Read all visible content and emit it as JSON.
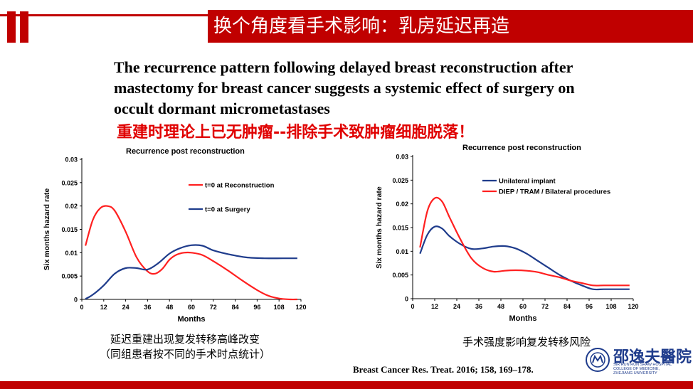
{
  "header": {
    "title": "换个角度看手术影响：乳房延迟再造"
  },
  "body_text": {
    "english": "The recurrence pattern following delayed breast reconstruction after mastectomy for breast cancer suggests a systemic effect of surgery on occult dormant micrometastases",
    "chinese_highlight": "重建时理论上已无肿瘤--排除手术致肿瘤细胞脱落！"
  },
  "captions": {
    "left_line1": "延迟重建出现复发转移高峰改变",
    "left_line2": "（同组患者按不同的手术时点统计）",
    "right": "手术强度影响复发转移风险"
  },
  "reference": "Breast Cancer Res. Treat. 2016; 158, 169–178.",
  "logo": {
    "name_cn": "邵逸夫醫院",
    "name_en_lines": [
      "SIR RUN RUN SHAW HOSPITAL",
      "COLLEGE OF MEDICINE,",
      "ZHEJIANG UNIVERSITY"
    ]
  },
  "colors": {
    "accent_red": "#c00000",
    "series_red": "#ff2020",
    "series_blue": "#1f3c8c"
  },
  "chart_data": [
    {
      "type": "line",
      "title": "Recurrence post reconstruction",
      "xlabel": "Months",
      "ylabel": "Six months hazard rate",
      "xlim": [
        0,
        120
      ],
      "ylim": [
        0,
        0.03
      ],
      "x_ticks": [
        "0",
        "12",
        "24",
        "36",
        "48",
        "60",
        "72",
        "84",
        "96",
        "108",
        "120"
      ],
      "y_ticks": [
        "0",
        "0.005",
        "0.01",
        "0.015",
        "0.02",
        "0.025",
        "0.03"
      ],
      "legend_position": "top-right",
      "series": [
        {
          "name": "t=0 at Reconstruction",
          "color": "red",
          "x": [
            2,
            6,
            10,
            14,
            18,
            24,
            30,
            36,
            40,
            44,
            48,
            52,
            56,
            60,
            66,
            72,
            80,
            88,
            96,
            102,
            108,
            114,
            118
          ],
          "y": [
            0.0115,
            0.017,
            0.0195,
            0.02,
            0.019,
            0.0145,
            0.009,
            0.006,
            0.0055,
            0.0065,
            0.0085,
            0.0096,
            0.01,
            0.01,
            0.0095,
            0.0082,
            0.0062,
            0.004,
            0.002,
            0.0008,
            0.0002,
            0.0,
            0.0
          ]
        },
        {
          "name": "t=0 at Surgery",
          "color": "blue",
          "x": [
            2,
            6,
            12,
            18,
            24,
            30,
            36,
            42,
            48,
            54,
            60,
            66,
            72,
            80,
            90,
            100,
            110,
            118
          ],
          "y": [
            0.0001,
            0.001,
            0.003,
            0.0055,
            0.0067,
            0.0067,
            0.0064,
            0.0078,
            0.0098,
            0.011,
            0.0116,
            0.0115,
            0.0105,
            0.0097,
            0.009,
            0.0088,
            0.0088,
            0.0088
          ]
        }
      ]
    },
    {
      "type": "line",
      "title": "Recurrence post reconstruction",
      "xlabel": "Months",
      "ylabel": "Six months hazard rate",
      "xlim": [
        0,
        120
      ],
      "ylim": [
        0,
        0.03
      ],
      "x_ticks": [
        "0",
        "12",
        "24",
        "36",
        "48",
        "60",
        "72",
        "84",
        "96",
        "108",
        "120"
      ],
      "y_ticks": [
        "0",
        "0.005",
        "0.01",
        "0.015",
        "0.02",
        "0.025",
        "0.03"
      ],
      "legend_position": "top-right",
      "series": [
        {
          "name": "Unilateral implant",
          "color": "blue",
          "x": [
            4,
            8,
            12,
            16,
            20,
            26,
            32,
            38,
            44,
            50,
            56,
            62,
            68,
            74,
            80,
            86,
            92,
            98,
            104,
            110,
            118
          ],
          "y": [
            0.0095,
            0.0135,
            0.0152,
            0.0148,
            0.0132,
            0.0115,
            0.0105,
            0.0106,
            0.011,
            0.0111,
            0.0106,
            0.0095,
            0.008,
            0.0065,
            0.005,
            0.0038,
            0.0028,
            0.002,
            0.002,
            0.002,
            0.002
          ]
        },
        {
          "name": "DIEP / TRAM / Bilateral procedures",
          "color": "red",
          "x": [
            4,
            8,
            12,
            16,
            20,
            26,
            32,
            38,
            44,
            50,
            56,
            62,
            68,
            74,
            80,
            86,
            92,
            98,
            104,
            110,
            118
          ],
          "y": [
            0.0108,
            0.0185,
            0.0212,
            0.0205,
            0.0172,
            0.0125,
            0.0085,
            0.0065,
            0.0057,
            0.0059,
            0.006,
            0.0059,
            0.0056,
            0.005,
            0.0045,
            0.0038,
            0.0033,
            0.0028,
            0.0028,
            0.0028,
            0.0028
          ]
        }
      ]
    }
  ]
}
